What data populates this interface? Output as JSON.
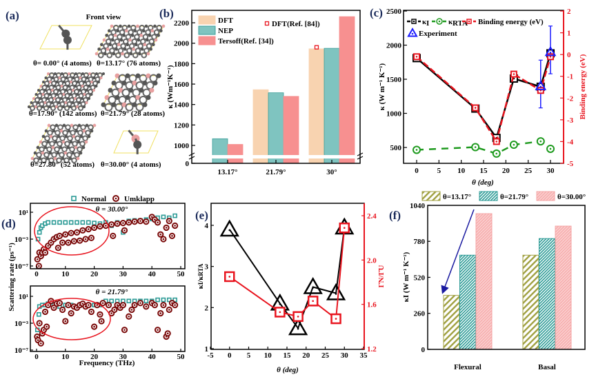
{
  "panel_labels": {
    "a": "(a)",
    "b": "(b)",
    "c": "(c)",
    "d": "(d)",
    "e": "(e)",
    "f": "(f)"
  },
  "structures": {
    "title": "Front view",
    "items": [
      {
        "caption": "θ= 0.00°  (4 atoms)"
      },
      {
        "caption": "θ=13.17°  (76 atoms)"
      },
      {
        "caption": "θ=17.90°  (142 atoms)"
      },
      {
        "caption": "θ=21.79°  (28 atoms)"
      },
      {
        "caption": "θ=27.80°  (52 atoms)"
      },
      {
        "caption": "θ=30.00° (4 atoms)"
      }
    ],
    "colors": {
      "carbon": "#555555",
      "boron_nitride": "#e8a0a0",
      "cell": "#f0e060"
    }
  },
  "chart_data": [
    {
      "panel": "b",
      "type": "bar",
      "ylabel": "κ (Wm⁻¹K⁻¹)",
      "categories": [
        "13.17°",
        "21.79°",
        "30°"
      ],
      "yticks": [
        0,
        1000,
        1200,
        1400,
        1600,
        1800,
        2000,
        2200
      ],
      "ylim": [
        0,
        2300
      ],
      "axis_break": true,
      "series": [
        {
          "name": "DFT",
          "values": [
            null,
            1545,
            1945
          ],
          "color": "#f8d3b0"
        },
        {
          "name": "NEP",
          "values": [
            1065,
            1515,
            1950
          ],
          "color": "#7fc4c0"
        },
        {
          "name": "Tersoff(Ref. [34])",
          "values": [
            1010,
            1480,
            2260
          ],
          "color": "#f79090"
        }
      ],
      "reference": {
        "name": "DFT(Ref. [84])",
        "category": "30°",
        "value": 1960,
        "color": "#e8141e"
      }
    },
    {
      "panel": "c",
      "type": "line",
      "xlabel": "θ (deg)",
      "ylabel": "κ (W m⁻¹ K⁻¹)",
      "ylabel_right": "Binding energy (eV)",
      "xlim": [
        -3,
        33
      ],
      "ylim": [
        250,
        2500
      ],
      "ylim_right": [
        -5,
        2
      ],
      "xticks": [
        0,
        5,
        10,
        15,
        20,
        25,
        30
      ],
      "yticks": [
        500,
        1000,
        1500,
        2000,
        2500
      ],
      "yticks_right": [
        -5,
        -4,
        -3,
        -2,
        -1,
        0,
        1,
        2
      ],
      "x": [
        0,
        13.17,
        17.9,
        21.79,
        27.8,
        30
      ],
      "series": [
        {
          "name": "κ",
          "sub": "I",
          "values": [
            1810,
            1070,
            640,
            1510,
            1390,
            1880
          ],
          "color": "#000000",
          "marker": "square"
        },
        {
          "name": "κ",
          "sub": "RTA",
          "values": [
            465,
            505,
            410,
            540,
            590,
            480
          ],
          "color": "#1e9a1e",
          "marker": "circle"
        },
        {
          "name": "Binding energy (eV)",
          "values": [
            -0.1,
            -2.45,
            -4.0,
            -0.9,
            -1.65,
            -0.1
          ],
          "color": "#e8141e",
          "marker": "square",
          "axis": "right"
        }
      ],
      "experiment": {
        "name": "Experiment",
        "color": "#1a1aff",
        "x": [
          27.8,
          30
        ],
        "values": [
          1400,
          1900
        ],
        "err_low": [
          1080,
          1580
        ],
        "err_high": [
          1780,
          2280
        ]
      }
    },
    {
      "panel": "d",
      "type": "scatter",
      "xlabel": "Frequency (THz)",
      "ylabel": "Scattering rate (ps⁻¹)",
      "xticks": [
        0,
        10,
        20,
        30,
        40,
        50
      ],
      "ytick_labels": [
        "10¹",
        "10⁻³",
        "10⁻⁷"
      ],
      "yscale": "log",
      "legend": [
        {
          "name": "Normal",
          "color": "#2a9a95",
          "marker": "square"
        },
        {
          "name": "Umklapp",
          "color": "#7a0a0a",
          "marker": "circle"
        }
      ],
      "subplots": [
        {
          "annotation": "θ = 30.00°",
          "normal": [
            [
              0.5,
              0.001
            ],
            [
              1,
              0.01
            ],
            [
              1.5,
              0.05
            ],
            [
              2,
              0.1
            ],
            [
              3,
              0.2
            ],
            [
              4,
              0.3
            ],
            [
              6,
              0.3
            ],
            [
              8,
              0.3
            ],
            [
              10,
              0.3
            ],
            [
              12,
              0.3
            ],
            [
              14,
              0.3
            ],
            [
              16,
              0.3
            ],
            [
              18,
              0.3
            ],
            [
              20,
              0.25
            ],
            [
              22,
              0.2
            ],
            [
              24,
              0.3
            ],
            [
              26,
              0.1
            ],
            [
              28,
              0.3
            ],
            [
              30,
              0.01
            ],
            [
              32,
              0.5
            ],
            [
              34,
              0.6
            ],
            [
              36,
              0.6
            ],
            [
              38,
              0.8
            ],
            [
              40,
              1
            ],
            [
              42,
              1.5
            ],
            [
              44,
              2
            ],
            [
              46,
              1.5
            ],
            [
              48,
              3
            ]
          ],
          "umklapp": [
            [
              0.3,
              1e-06
            ],
            [
              0.8,
              1e-07
            ],
            [
              1,
              1e-05
            ],
            [
              1.5,
              3e-06
            ],
            [
              2,
              1e-05
            ],
            [
              2.5,
              3e-05
            ],
            [
              3,
              1e-05
            ],
            [
              4,
              0.0001
            ],
            [
              5,
              0.0003
            ],
            [
              6,
              0.001
            ],
            [
              7,
              0.002
            ],
            [
              7.5,
              5e-05
            ],
            [
              8,
              0.003
            ],
            [
              9,
              0.0003
            ],
            [
              10,
              0.005
            ],
            [
              11,
              0.0003
            ],
            [
              12,
              0.008
            ],
            [
              13,
              0.0005
            ],
            [
              14,
              0.01
            ],
            [
              15,
              0.0006
            ],
            [
              16,
              0.02
            ],
            [
              17,
              0.001
            ],
            [
              18,
              0.03
            ],
            [
              19,
              0.0015
            ],
            [
              20,
              0.05
            ],
            [
              22,
              0.08
            ],
            [
              24,
              0.1
            ],
            [
              26,
              0.15
            ],
            [
              26.5,
              0.003
            ],
            [
              28,
              0.2
            ],
            [
              30,
              0.25
            ],
            [
              30.5,
              0.02
            ],
            [
              32,
              0.3
            ],
            [
              34,
              0.4
            ],
            [
              36,
              0.5
            ],
            [
              38,
              0.4
            ],
            [
              40,
              2
            ],
            [
              41,
              0.8
            ],
            [
              42,
              0.3
            ],
            [
              43,
              0.005
            ],
            [
              44,
              0.001
            ],
            [
              45,
              0.05
            ],
            [
              46,
              0.5
            ],
            [
              47,
              0.003
            ],
            [
              48,
              0.1
            ]
          ]
        },
        {
          "annotation": "θ = 21.79°",
          "normal": [
            [
              0.3,
              0.0001
            ],
            [
              0.8,
              0.02
            ],
            [
              1,
              0.3
            ],
            [
              2,
              0.5
            ],
            [
              3,
              0.5
            ],
            [
              4,
              0.8
            ],
            [
              6,
              0.5
            ],
            [
              8,
              0.3
            ],
            [
              10,
              0.5
            ],
            [
              12,
              0.5
            ],
            [
              14,
              0.3
            ],
            [
              16,
              0.5
            ],
            [
              18,
              0.5
            ],
            [
              20,
              0.5
            ],
            [
              22,
              0.5
            ],
            [
              24,
              2
            ],
            [
              26,
              2
            ],
            [
              28,
              2
            ],
            [
              30,
              2
            ],
            [
              32,
              2
            ],
            [
              34,
              2
            ],
            [
              36,
              2
            ],
            [
              38,
              2
            ],
            [
              40,
              2
            ],
            [
              42,
              3
            ],
            [
              44,
              3
            ],
            [
              46,
              3
            ],
            [
              48,
              3
            ]
          ],
          "umklapp": [
            [
              0.2,
              1e-05
            ],
            [
              0.5,
              3e-06
            ],
            [
              1,
              0.001
            ],
            [
              1.5,
              1e-06
            ],
            [
              2,
              3e-05
            ],
            [
              2.5,
              0.0001
            ],
            [
              3,
              0.05
            ],
            [
              3.5,
              0.0003
            ],
            [
              4,
              0.5
            ],
            [
              5,
              2
            ],
            [
              6,
              0.2
            ],
            [
              7,
              0.8
            ],
            [
              8,
              1
            ],
            [
              9,
              0.1
            ],
            [
              10,
              0.002
            ],
            [
              11,
              0.5
            ],
            [
              12,
              0.03
            ],
            [
              13,
              0.3
            ],
            [
              14,
              0.2
            ],
            [
              15,
              0.5
            ],
            [
              16,
              0.8
            ],
            [
              17,
              0.3
            ],
            [
              18,
              0.5
            ],
            [
              19,
              0.05
            ],
            [
              20,
              0.0003
            ],
            [
              21,
              0.5
            ],
            [
              22,
              0.02
            ],
            [
              22.5,
              0.002
            ],
            [
              23,
              1
            ],
            [
              25,
              0.5
            ],
            [
              26,
              0.03
            ],
            [
              27,
              0.1
            ],
            [
              28,
              0.5
            ],
            [
              29,
              0.2
            ],
            [
              30,
              0.5
            ],
            [
              30.5,
              0.0001
            ],
            [
              32,
              0.01
            ],
            [
              33,
              0.1
            ],
            [
              34,
              0.5
            ],
            [
              36,
              1
            ],
            [
              38,
              0.3
            ],
            [
              40,
              1
            ],
            [
              41,
              0.5
            ],
            [
              42,
              0.0001
            ],
            [
              43,
              0.03
            ],
            [
              44,
              0.5
            ],
            [
              45,
              1e-05
            ],
            [
              45.5,
              3e-05
            ],
            [
              46,
              0.1
            ],
            [
              47,
              1
            ],
            [
              48,
              0.5
            ]
          ]
        }
      ]
    },
    {
      "panel": "e",
      "type": "line",
      "xlabel": "θ (deg)",
      "ylabel": {
        "k1": "κ",
        "s1": "I",
        "slash": "/",
        "k2": "κ",
        "s2": "RTA"
      },
      "ylabel_right": "Γ̄N/Γ̄U",
      "xlim": [
        -5,
        35
      ],
      "ylim": [
        1,
        4.5
      ],
      "ylim_right": [
        1.2,
        2.5
      ],
      "xticks": [
        -5,
        0,
        5,
        10,
        15,
        20,
        25,
        30,
        35
      ],
      "yticks": [
        1,
        2,
        3,
        4
      ],
      "yticks_right": [
        "1.2",
        "1.6",
        "2.0",
        "2.4"
      ],
      "x": [
        0,
        13.17,
        17.9,
        21.79,
        27.8,
        30
      ],
      "series": [
        {
          "values": [
            3.9,
            2.1,
            1.5,
            2.5,
            2.35,
            3.95
          ],
          "color": "#000000",
          "marker": "triangle"
        },
        {
          "values": [
            1.85,
            1.53,
            1.49,
            1.63,
            1.47,
            2.29
          ],
          "color": "#e8141e",
          "marker": "square",
          "axis": "right"
        }
      ]
    },
    {
      "panel": "f",
      "type": "bar",
      "ylabel": "κI (W m⁻¹ K⁻¹)",
      "categories": [
        "Flexural",
        "Basal"
      ],
      "yticks": [
        0,
        260,
        520,
        780,
        1040
      ],
      "ylim": [
        0,
        1040
      ],
      "series": [
        {
          "name": "θ=13.17°",
          "values": [
            390,
            680
          ],
          "color": "#a0a040"
        },
        {
          "name": "θ=21.79°",
          "values": [
            680,
            800
          ],
          "color": "#2a9a95"
        },
        {
          "name": "θ=30.00°",
          "values": [
            980,
            890
          ],
          "color": "#f5a5a5"
        }
      ],
      "arrow_color": "#1a1aa0"
    }
  ]
}
